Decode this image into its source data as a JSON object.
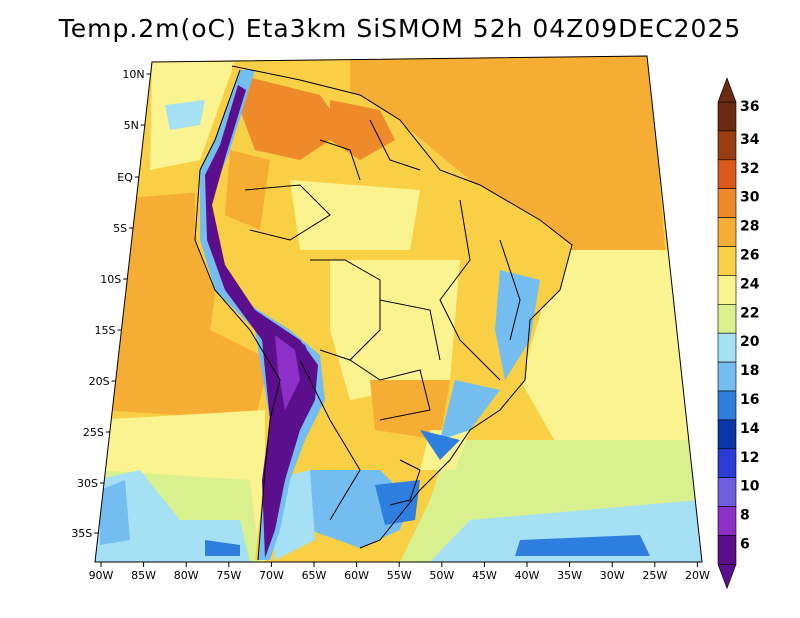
{
  "title": "Temp.2m(oC) Eta3km SiSMOM 52h 04Z09DEC2025",
  "lat_labels": [
    "10N",
    "5N",
    "EQ",
    "5S",
    "10S",
    "15S",
    "20S",
    "25S",
    "30S",
    "35S"
  ],
  "lon_labels": [
    "90W",
    "85W",
    "80W",
    "75W",
    "70W",
    "65W",
    "60W",
    "55W",
    "50W",
    "45W",
    "40W",
    "35W",
    "30W",
    "25W",
    "20W"
  ],
  "colorbar": {
    "labels": [
      "36",
      "34",
      "32",
      "30",
      "28",
      "26",
      "24",
      "22",
      "20",
      "18",
      "16",
      "14",
      "12",
      "10",
      "8",
      "6"
    ],
    "colors": [
      "#6b2a12",
      "#9a3d10",
      "#d9581a",
      "#ee8a2a",
      "#f5ad34",
      "#f8cf45",
      "#fbf38f",
      "#d9f08f",
      "#a6e0f5",
      "#74bdf0",
      "#2e7ee0",
      "#0b36a8",
      "#2a3bd6",
      "#6f5fe0",
      "#8e2fc8",
      "#5b0f8c"
    ],
    "top_arrow_color": "#6b2a12",
    "bottom_arrow_color": "#5b0f8c"
  },
  "map_colors": {
    "ocean_warm": "#f5ad34",
    "ocean_mid": "#f8cf45",
    "ocean_cool": "#fbf38f",
    "ocean_cold": "#a6e0f5",
    "land_main": "#f8cf45",
    "land_hot": "#ee8a2a",
    "andes": "#5b0f8c",
    "andes_edge": "#2e7ee0",
    "south_land": "#74bdf0",
    "border": "#000000"
  }
}
